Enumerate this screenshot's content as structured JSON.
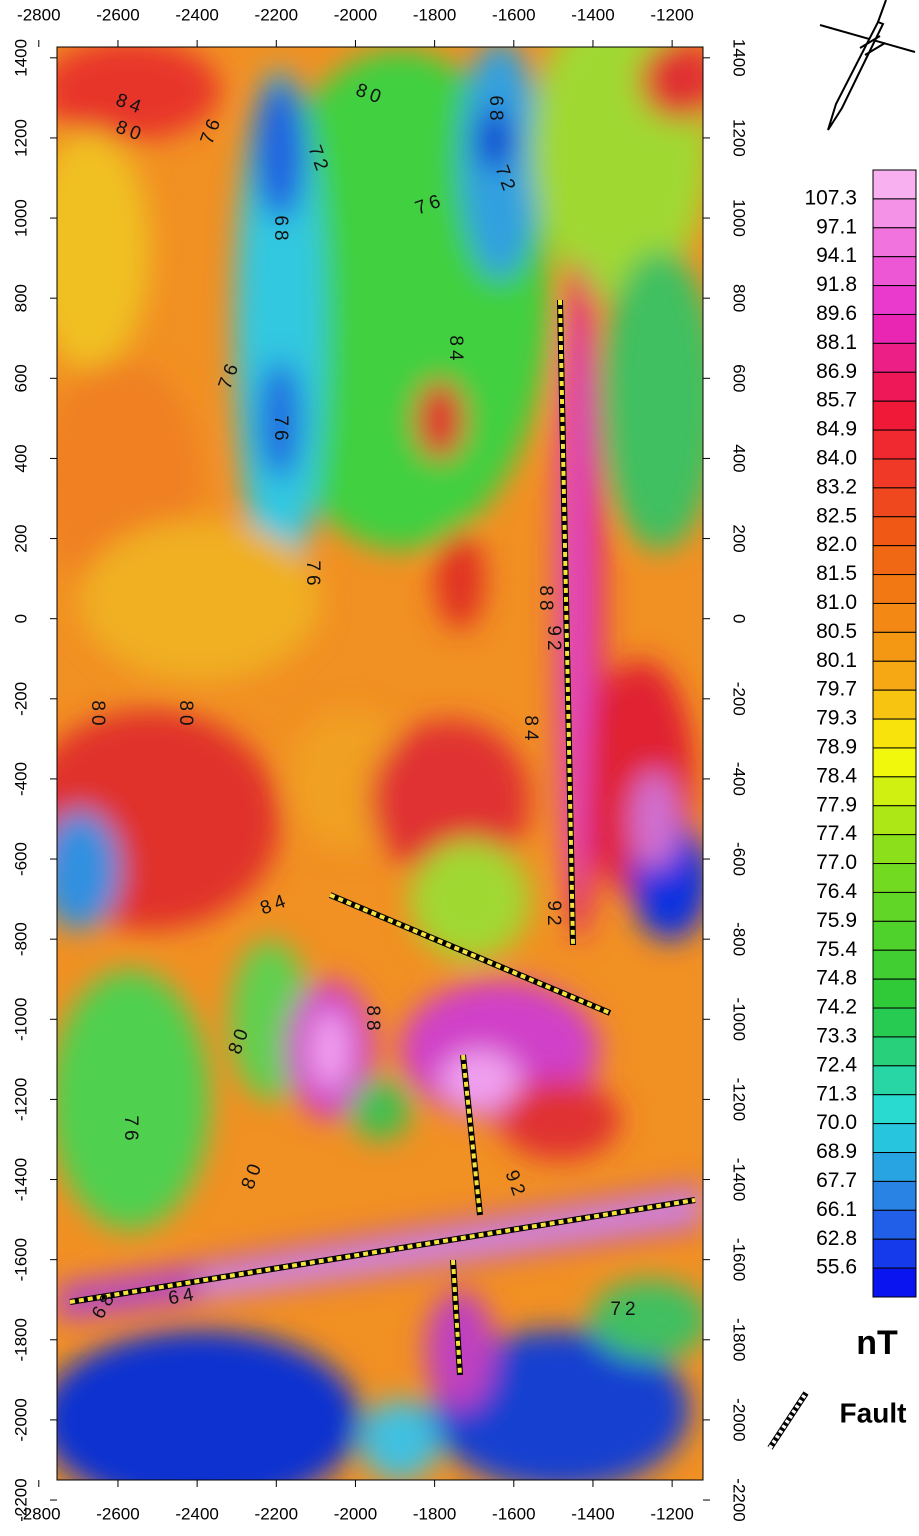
{
  "map": {
    "xlim": [
      -2754,
      -1122
    ],
    "ylim": [
      -2150,
      1427
    ],
    "xticks": [
      -2800,
      -2600,
      -2400,
      -2200,
      -2000,
      -1800,
      -1600,
      -1400,
      -1200
    ],
    "yticks": [
      1400,
      1200,
      1000,
      800,
      600,
      400,
      200,
      0,
      -200,
      -400,
      -600,
      -800,
      -1000,
      -1200,
      -1400,
      -1600,
      -1800,
      -2000,
      -2200
    ]
  },
  "color_scale": {
    "unit": "nT",
    "levels": [
      "107.3",
      "97.1",
      "94.1",
      "91.8",
      "89.6",
      "88.1",
      "86.9",
      "85.7",
      "84.9",
      "84.0",
      "83.2",
      "82.5",
      "82.0",
      "81.5",
      "81.0",
      "80.5",
      "80.1",
      "79.7",
      "79.3",
      "78.9",
      "78.4",
      "77.9",
      "77.4",
      "77.0",
      "76.4",
      "75.9",
      "75.4",
      "74.8",
      "74.2",
      "73.3",
      "72.4",
      "71.3",
      "70.0",
      "68.9",
      "67.7",
      "66.1",
      "62.8",
      "55.6"
    ]
  },
  "legend": {
    "fault": "Fault"
  },
  "contour_labels": [
    "80",
    "84",
    "80",
    "76",
    "72",
    "76",
    "72",
    "68",
    "68",
    "76",
    "76",
    "88",
    "92",
    "80",
    "80",
    "84",
    "76",
    "84",
    "92",
    "88",
    "80",
    "76",
    "84",
    "80",
    "92",
    "64",
    "68",
    "72"
  ]
}
